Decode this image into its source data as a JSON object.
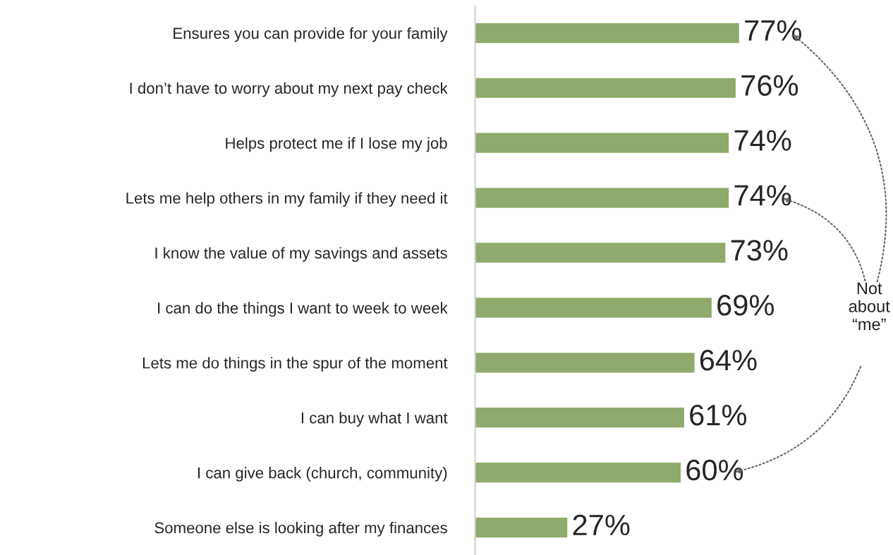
{
  "chart_data": {
    "type": "bar",
    "orientation": "horizontal",
    "categories": [
      "Ensures you can provide for your family",
      "I don’t have to worry about my next pay check",
      "Helps protect me if I lose my job",
      "Lets me help others in my family if they need it",
      "I know the value of my savings and assets",
      "I can do the things I want to week to week",
      "Lets me do things in the spur of the moment",
      "I can buy what I want",
      "I can give back (church, community)",
      "Someone else is looking after my finances"
    ],
    "values": [
      77,
      76,
      74,
      74,
      73,
      69,
      64,
      61,
      60,
      27
    ],
    "value_labels": [
      "77%",
      "76%",
      "74%",
      "74%",
      "73%",
      "69%",
      "64%",
      "61%",
      "60%",
      "27%"
    ],
    "color": "#8faa6c",
    "tick_labels": "y",
    "grid": false,
    "legend": false,
    "annotations": [
      "Not\nabout\n“me”"
    ]
  }
}
